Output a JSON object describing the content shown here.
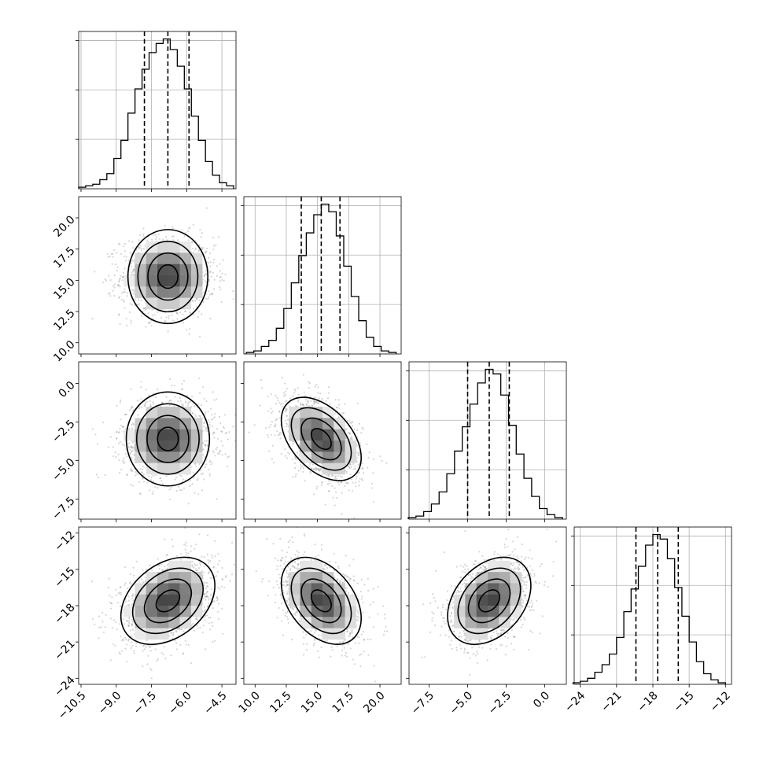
{
  "chart_data": {
    "type": "corner",
    "parameters": [
      {
        "ticks": [
          -10.5,
          -9.0,
          -7.5,
          -6.0,
          -4.5
        ],
        "tick_labels": [
          "−10.5",
          "−9.0",
          "−7.5",
          "−6.0",
          "−4.5"
        ],
        "range": [
          -10.6,
          -3.9
        ],
        "mean": -6.8,
        "sd": 1.0,
        "quantiles": [
          -7.8,
          -6.8,
          -5.9
        ]
      },
      {
        "ticks": [
          10.0,
          12.5,
          15.0,
          17.5,
          20.0
        ],
        "tick_labels": [
          "10.0",
          "12.5",
          "15.0",
          "17.5",
          "20.0"
        ],
        "range": [
          9.1,
          21.7
        ],
        "mean": 15.3,
        "sd": 1.6,
        "quantiles": [
          13.7,
          15.3,
          16.8
        ]
      },
      {
        "ticks": [
          -7.5,
          -5.0,
          -2.5,
          0.0
        ],
        "tick_labels": [
          "−7.5",
          "−5.0",
          "−2.5",
          "0.0"
        ],
        "range": [
          -8.8,
          1.4
        ],
        "mean": -3.6,
        "sd": 1.35,
        "quantiles": [
          -5.0,
          -3.6,
          -2.3
        ]
      },
      {
        "ticks": [
          -24,
          -21,
          -18,
          -15,
          -12
        ],
        "tick_labels": [
          "−24",
          "−21",
          "−18",
          "−15",
          "−12"
        ],
        "range": [
          -24.5,
          -11.5
        ],
        "mean": -17.6,
        "sd": 1.8,
        "quantiles": [
          -19.4,
          -17.6,
          -15.9
        ]
      }
    ],
    "histograms": [
      {
        "bins": [
          -10.45,
          -10.15,
          -9.85,
          -9.55,
          -9.25,
          -8.95,
          -8.65,
          -8.35,
          -8.05,
          -7.75,
          -7.45,
          -7.15,
          -6.85,
          -6.55,
          -6.25,
          -5.95,
          -5.65,
          -5.35,
          -5.05,
          -4.75,
          -4.45,
          -4.15
        ],
        "counts": [
          1,
          2,
          3,
          6,
          10,
          20,
          32,
          50,
          66,
          79,
          90,
          96,
          99,
          92,
          81,
          66,
          48,
          32,
          18,
          9,
          4,
          2
        ]
      },
      {
        "bins": [
          9.6,
          10.2,
          10.8,
          11.4,
          12.0,
          12.6,
          13.2,
          13.8,
          14.4,
          15.0,
          15.6,
          16.2,
          16.8,
          17.4,
          18.0,
          18.6,
          19.2,
          19.8,
          20.4,
          21.0
        ],
        "counts": [
          1,
          2,
          5,
          9,
          17,
          30,
          47,
          65,
          80,
          92,
          99,
          94,
          78,
          58,
          38,
          22,
          11,
          5,
          2,
          1
        ]
      },
      {
        "bins": [
          -8.6,
          -8.1,
          -7.6,
          -7.1,
          -6.6,
          -6.1,
          -5.6,
          -5.1,
          -4.6,
          -4.1,
          -3.6,
          -3.1,
          -2.6,
          -2.1,
          -1.6,
          -1.1,
          -0.6,
          -0.1,
          0.4,
          0.9
        ],
        "counts": [
          1,
          2,
          5,
          10,
          18,
          30,
          45,
          61,
          76,
          90,
          99,
          96,
          82,
          62,
          43,
          27,
          15,
          7,
          3,
          1
        ]
      },
      {
        "bins": [
          -24.3,
          -23.7,
          -23.1,
          -22.5,
          -21.9,
          -21.3,
          -20.7,
          -20.1,
          -19.5,
          -18.9,
          -18.3,
          -17.7,
          -17.1,
          -16.5,
          -15.9,
          -15.3,
          -14.7,
          -14.1,
          -13.5,
          -12.9,
          -12.3
        ],
        "counts": [
          1,
          2,
          4,
          8,
          13,
          20,
          31,
          48,
          63,
          78,
          92,
          99,
          96,
          83,
          64,
          45,
          28,
          15,
          7,
          3,
          1
        ]
      }
    ],
    "correlations": [
      [
        1,
        0,
        0,
        0.35
      ],
      [
        0,
        1,
        -0.45,
        -0.4
      ],
      [
        0,
        -0.45,
        1,
        0.35
      ],
      [
        0.35,
        -0.4,
        0.35,
        1
      ]
    ],
    "contour_levels_sigma": [
      0.5,
      1.0,
      1.5,
      2.0
    ],
    "quantiles": [
      0.16,
      0.5,
      0.84
    ],
    "grid": true
  }
}
